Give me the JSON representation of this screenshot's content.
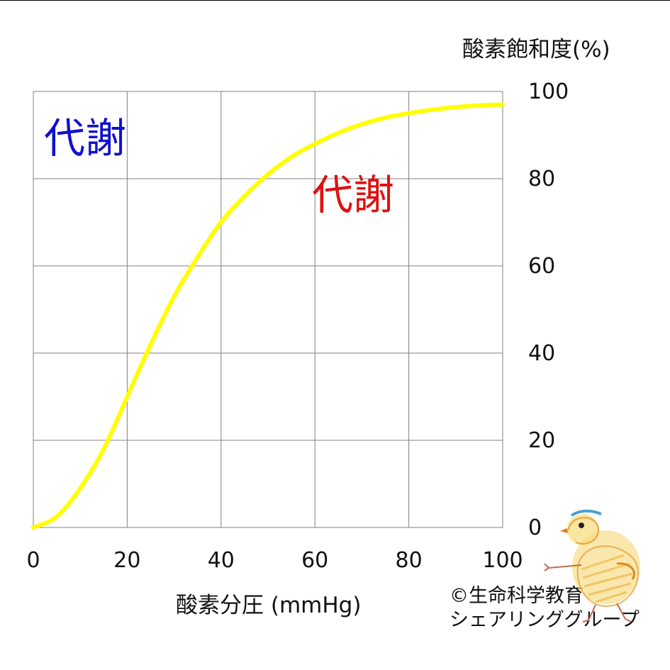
{
  "chart_data": {
    "type": "line",
    "x": [
      0,
      5,
      10,
      15,
      20,
      25,
      30,
      35,
      40,
      45,
      50,
      55,
      60,
      65,
      70,
      75,
      80,
      85,
      90,
      95,
      100
    ],
    "series": [
      {
        "values": [
          0,
          2.5,
          9,
          18,
          30,
          42,
          53,
          62,
          70,
          76,
          81,
          85,
          88,
          90.5,
          92.5,
          94,
          95,
          95.8,
          96.4,
          96.8,
          97
        ]
      }
    ],
    "xlim": [
      0,
      100
    ],
    "ylim": [
      0,
      100
    ],
    "xticks": [
      "0",
      "20",
      "40",
      "60",
      "80",
      "100"
    ],
    "yticks": [
      "0",
      "20",
      "40",
      "60",
      "80",
      "100"
    ],
    "xgrid_step": 20,
    "ygrid_step": 20,
    "grid": true,
    "y_axis_side": "right",
    "xlabel": "酸素分圧 (mmHg)",
    "ylabel": "酸素飽和度(%)",
    "colors": {
      "line": "#ffff00",
      "grid": "#808080",
      "annotation_blue": "#1010d0",
      "annotation_red": "#e01010"
    }
  },
  "annotations": {
    "blue_text": "代謝",
    "red_text": "代謝"
  },
  "credit": {
    "line1": "©生命科学教育",
    "line2": "シェアリンググループ"
  },
  "mascot": {
    "icon": "chick-drawing-icon"
  }
}
